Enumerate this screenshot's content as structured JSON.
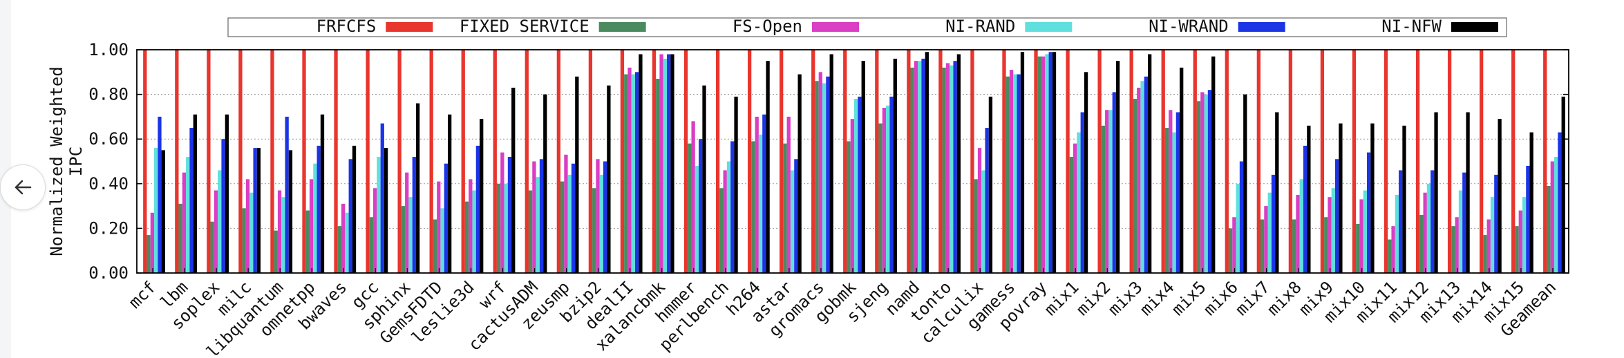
{
  "chart_data": {
    "type": "bar",
    "ylabel_lines": [
      "Normalized Weighted",
      "IPC"
    ],
    "ylim": [
      0,
      1.0
    ],
    "yticks": [
      "0.00",
      "0.20",
      "0.40",
      "0.60",
      "0.80",
      "1.00"
    ],
    "ytick_values": [
      0,
      0.2,
      0.4,
      0.6,
      0.8,
      1.0
    ],
    "grid": true,
    "legend_position": "top",
    "categories": [
      "mcf",
      "lbm",
      "soplex",
      "milc",
      "libquantum",
      "omnetpp",
      "bwaves",
      "gcc",
      "sphinx",
      "GemsFDTD",
      "leslie3d",
      "wrf",
      "cactusADM",
      "zeusmp",
      "bzip2",
      "dealII",
      "xalancbmk",
      "hmmer",
      "perlbench",
      "h264",
      "astar",
      "gromacs",
      "gobmk",
      "sjeng",
      "namd",
      "tonto",
      "calculix",
      "gamess",
      "povray",
      "mix1",
      "mix2",
      "mix3",
      "mix4",
      "mix5",
      "mix6",
      "mix7",
      "mix8",
      "mix9",
      "mix10",
      "mix11",
      "mix12",
      "mix13",
      "mix14",
      "mix15",
      "Geamean"
    ],
    "series": [
      {
        "name": "FRFCFS",
        "color": "#e8352d",
        "values": [
          1,
          1,
          1,
          1,
          1,
          1,
          1,
          1,
          1,
          1,
          1,
          1,
          1,
          1,
          1,
          1,
          1,
          1,
          1,
          1,
          1,
          1,
          1,
          1,
          1,
          1,
          1,
          1,
          1,
          1,
          1,
          1,
          1,
          1,
          1,
          1,
          1,
          1,
          1,
          1,
          1,
          1,
          1,
          1,
          1
        ]
      },
      {
        "name": "FIXED SERVICE",
        "color": "#4a8a5e",
        "values": [
          0.17,
          0.31,
          0.23,
          0.29,
          0.19,
          0.28,
          0.21,
          0.25,
          0.3,
          0.24,
          0.32,
          0.4,
          0.37,
          0.41,
          0.38,
          0.89,
          0.87,
          0.58,
          0.38,
          0.59,
          0.58,
          0.86,
          0.59,
          0.67,
          0.92,
          0.92,
          0.42,
          0.88,
          0.97,
          0.52,
          0.66,
          0.78,
          0.65,
          0.77,
          0.2,
          0.24,
          0.24,
          0.25,
          0.22,
          0.15,
          0.26,
          0.21,
          0.17,
          0.21,
          0.39
        ]
      },
      {
        "name": "FS-Open",
        "color": "#d93ec4",
        "values": [
          0.27,
          0.45,
          0.37,
          0.42,
          0.37,
          0.42,
          0.31,
          0.38,
          0.45,
          0.41,
          0.42,
          0.54,
          0.5,
          0.53,
          0.51,
          0.92,
          0.98,
          0.68,
          0.46,
          0.7,
          0.7,
          0.9,
          0.69,
          0.74,
          0.95,
          0.94,
          0.56,
          0.91,
          0.97,
          0.58,
          0.73,
          0.83,
          0.73,
          0.81,
          0.25,
          0.3,
          0.35,
          0.34,
          0.33,
          0.21,
          0.36,
          0.25,
          0.24,
          0.28,
          0.5
        ]
      },
      {
        "name": "NI-RAND",
        "color": "#5fe0de",
        "values": [
          0.56,
          0.52,
          0.46,
          0.36,
          0.34,
          0.49,
          0.27,
          0.52,
          0.34,
          0.29,
          0.37,
          0.4,
          0.43,
          0.44,
          0.44,
          0.89,
          0.96,
          0.48,
          0.5,
          0.62,
          0.46,
          0.85,
          0.78,
          0.75,
          0.95,
          0.93,
          0.46,
          0.89,
          0.98,
          0.63,
          0.73,
          0.86,
          0.63,
          0.8,
          0.4,
          0.36,
          0.42,
          0.38,
          0.37,
          0.35,
          0.4,
          0.37,
          0.34,
          0.34,
          0.52
        ]
      },
      {
        "name": "NI-WRAND",
        "color": "#1b34e6",
        "values": [
          0.7,
          0.65,
          0.6,
          0.56,
          0.7,
          0.57,
          0.51,
          0.67,
          0.52,
          0.49,
          0.57,
          0.52,
          0.51,
          0.49,
          0.5,
          0.9,
          0.98,
          0.6,
          0.59,
          0.71,
          0.51,
          0.88,
          0.79,
          0.79,
          0.96,
          0.95,
          0.65,
          0.89,
          0.99,
          0.72,
          0.81,
          0.88,
          0.72,
          0.82,
          0.5,
          0.44,
          0.57,
          0.51,
          0.54,
          0.46,
          0.46,
          0.45,
          0.44,
          0.48,
          0.63
        ]
      },
      {
        "name": "NI-NFW",
        "color": "#000000",
        "values": [
          0.55,
          0.71,
          0.71,
          0.56,
          0.55,
          0.71,
          0.57,
          0.56,
          0.76,
          0.71,
          0.69,
          0.83,
          0.8,
          0.88,
          0.84,
          0.98,
          0.98,
          0.84,
          0.79,
          0.95,
          0.89,
          0.98,
          0.95,
          0.96,
          0.99,
          0.98,
          0.79,
          0.99,
          0.99,
          0.9,
          0.95,
          0.98,
          0.92,
          0.97,
          0.8,
          0.72,
          0.66,
          0.67,
          0.67,
          0.66,
          0.72,
          0.72,
          0.69,
          0.63,
          0.79
        ]
      }
    ]
  },
  "ui": {
    "back_icon": "arrow-left-icon"
  }
}
